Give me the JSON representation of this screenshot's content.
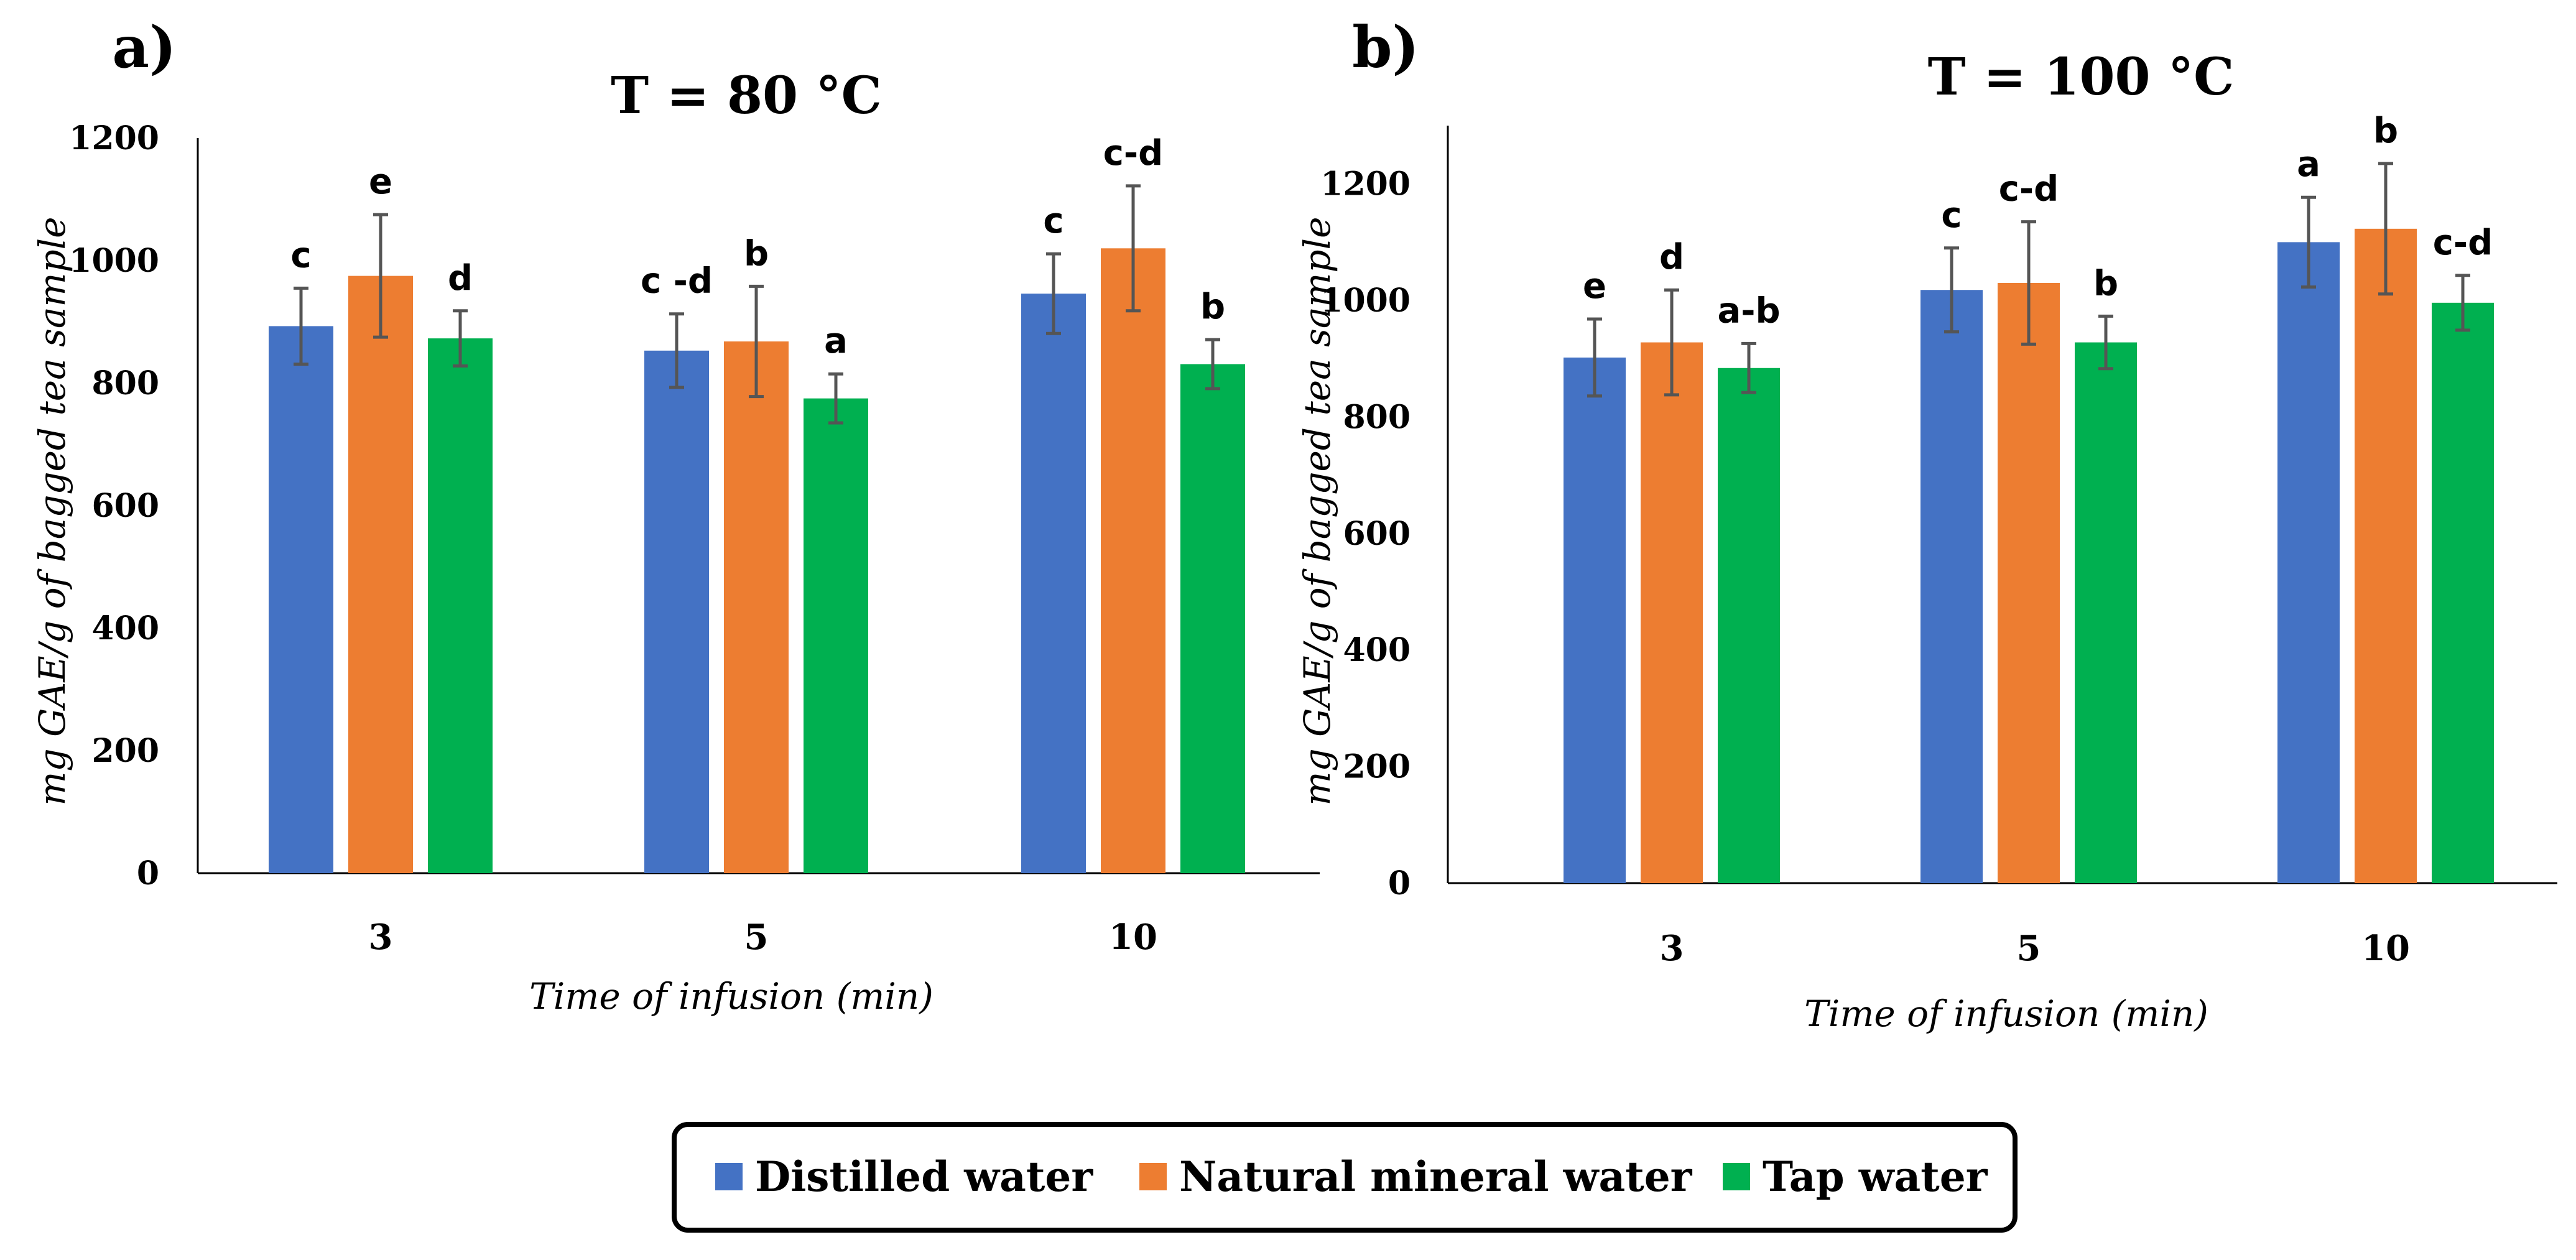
{
  "legend": [
    {
      "name": "Distilled water",
      "color": "#4472C4"
    },
    {
      "name": "Natural mineral water",
      "color": "#ED7D31"
    },
    {
      "name": "Tap water",
      "color": "#00B050"
    }
  ],
  "chart_data": [
    {
      "panel": "a)",
      "type": "bar",
      "title": "T = 80 °C",
      "xlabel": "Time of infusion  (min)",
      "ylabel": "mg GAE/g of bagged tea sample",
      "ylim": [
        0,
        1200
      ],
      "yticks": [
        0,
        200,
        400,
        600,
        800,
        1000,
        1200
      ],
      "categories": [
        "3",
        "5",
        "10"
      ],
      "series": [
        {
          "name": "Distilled water",
          "values": [
            893,
            853,
            946
          ],
          "errors": [
            62,
            60,
            65
          ],
          "labels": [
            "c",
            "c -d",
            "c"
          ]
        },
        {
          "name": "Natural mineral water",
          "values": [
            975,
            868,
            1020
          ],
          "errors": [
            100,
            90,
            102
          ],
          "labels": [
            "e",
            "b",
            "c-d"
          ]
        },
        {
          "name": "Tap water",
          "values": [
            873,
            775,
            831
          ],
          "errors": [
            45,
            40,
            40
          ],
          "labels": [
            "d",
            "a",
            "b"
          ]
        }
      ]
    },
    {
      "panel": "b)",
      "type": "bar",
      "title": "T = 100 °C",
      "xlabel": "Time of infusion  (min)",
      "ylabel": "mg GAE/g of bagged tea sample",
      "ylim": [
        0,
        1300
      ],
      "yticks": [
        0,
        200,
        400,
        600,
        800,
        1000,
        1200
      ],
      "categories": [
        "3",
        "5",
        "10"
      ],
      "series": [
        {
          "name": "Distilled water",
          "values": [
            902,
            1018,
            1100
          ],
          "errors": [
            66,
            72,
            77
          ],
          "labels": [
            "e",
            "c",
            "a"
          ]
        },
        {
          "name": "Natural mineral water",
          "values": [
            928,
            1030,
            1123
          ],
          "errors": [
            90,
            105,
            112
          ],
          "labels": [
            "d",
            "c-d",
            "b"
          ]
        },
        {
          "name": "Tap water",
          "values": [
            884,
            928,
            996
          ],
          "errors": [
            42,
            45,
            47
          ],
          "labels": [
            "a-b",
            "b",
            "c-d"
          ]
        }
      ]
    }
  ]
}
